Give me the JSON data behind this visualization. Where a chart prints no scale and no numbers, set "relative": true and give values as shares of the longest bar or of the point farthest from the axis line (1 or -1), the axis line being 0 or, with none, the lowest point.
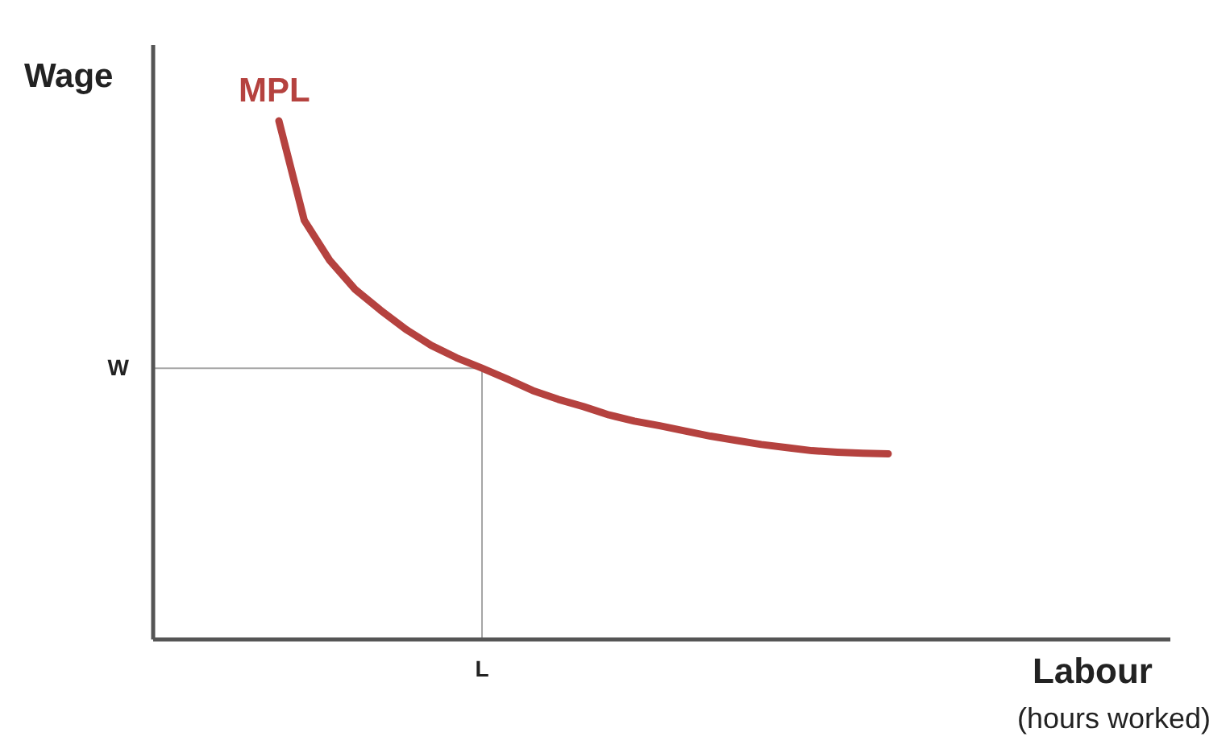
{
  "chart_data": {
    "type": "line",
    "relative": true,
    "ylabel": "Wage",
    "xlabel": "Labour",
    "annotations": [
      "(hours worked)"
    ],
    "categories": [
      null,
      null,
      null,
      null,
      null,
      null,
      null,
      null,
      null,
      null,
      null,
      null,
      null,
      null,
      null,
      null,
      null,
      null,
      null,
      null,
      null,
      null,
      null,
      null,
      null
    ],
    "series": [
      {
        "name": "MPL",
        "color": "#b5423f",
        "values": [
          1,
          0.808,
          0.731,
          0.675,
          0.635,
          0.598,
          0.567,
          0.543,
          0.523,
          0.502,
          0.48,
          0.463,
          0.449,
          0.433,
          0.421,
          0.412,
          0.402,
          0.392,
          0.384,
          0.376,
          0.37,
          0.364,
          0.361,
          0.359,
          0.358
        ]
      }
    ],
    "ref_lines": [
      {
        "axis": "y",
        "value": 0.523,
        "label": "W",
        "color": "#a6a6a6"
      },
      {
        "axis": "x",
        "label": "L",
        "color": "#a6a6a6"
      }
    ],
    "grid": false,
    "legend": false,
    "marker": "none",
    "line_style": "solid"
  }
}
